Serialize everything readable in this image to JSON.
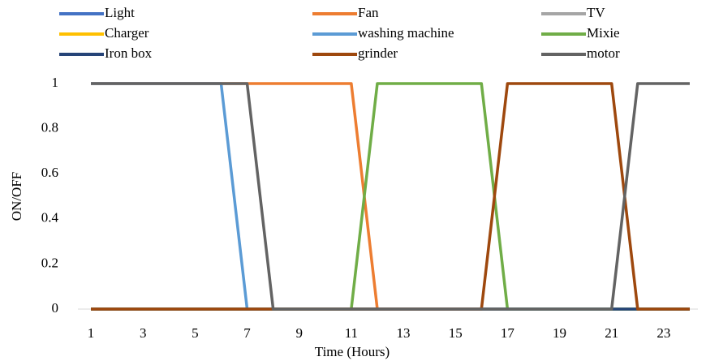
{
  "chart_data": {
    "type": "line",
    "x_label": "Time (Hours)",
    "y_label": "ON/OFF",
    "x": [
      1,
      2,
      3,
      4,
      5,
      6,
      7,
      8,
      9,
      10,
      11,
      12,
      13,
      14,
      15,
      16,
      17,
      18,
      19,
      20,
      21,
      22,
      23,
      24
    ],
    "xlim": [
      0.5,
      24.5
    ],
    "xticks": [
      1,
      3,
      5,
      7,
      9,
      11,
      13,
      15,
      17,
      19,
      21,
      23
    ],
    "ylim": [
      0,
      1
    ],
    "yticks": [
      0,
      0.2,
      0.4,
      0.6,
      0.8,
      1
    ],
    "grid": false,
    "legend": "top",
    "series": [
      {
        "name": "Light",
        "color": "#4472c4",
        "values": [
          0,
          0,
          0,
          0,
          0,
          0,
          0,
          0,
          0,
          0,
          0,
          0,
          0,
          0,
          0,
          0,
          0,
          0,
          0,
          0,
          0,
          0,
          0,
          0
        ]
      },
      {
        "name": "Fan",
        "color": "#ed7d31",
        "values": [
          1,
          1,
          1,
          1,
          1,
          1,
          1,
          1,
          1,
          1,
          1,
          0,
          0,
          0,
          0,
          0,
          0,
          0,
          0,
          0,
          0,
          0,
          0,
          0
        ]
      },
      {
        "name": "TV",
        "color": "#a5a5a5",
        "values": [
          0,
          0,
          0,
          0,
          0,
          0,
          0,
          0,
          0,
          0,
          0,
          0,
          0,
          0,
          0,
          0,
          0,
          0,
          0,
          0,
          0,
          0,
          0,
          0
        ]
      },
      {
        "name": "Charger",
        "color": "#ffc000",
        "values": [
          0,
          0,
          0,
          0,
          0,
          0,
          0,
          0,
          0,
          0,
          0,
          0,
          0,
          0,
          0,
          0,
          0,
          0,
          0,
          0,
          0,
          0,
          0,
          0
        ]
      },
      {
        "name": "washing machine",
        "color": "#5b9bd5",
        "values": [
          1,
          1,
          1,
          1,
          1,
          1,
          0,
          0,
          0,
          0,
          0,
          0,
          0,
          0,
          0,
          0,
          0,
          0,
          0,
          0,
          0,
          0,
          0,
          0
        ]
      },
      {
        "name": "Mixie",
        "color": "#70ad47",
        "values": [
          0,
          0,
          0,
          0,
          0,
          0,
          0,
          0,
          0,
          0,
          0,
          1,
          1,
          1,
          1,
          1,
          0,
          0,
          0,
          0,
          0,
          0,
          0,
          0
        ]
      },
      {
        "name": "Iron box",
        "color": "#264478",
        "values": [
          0,
          0,
          0,
          0,
          0,
          0,
          0,
          0,
          0,
          0,
          0,
          0,
          0,
          0,
          0,
          0,
          0,
          0,
          0,
          0,
          0,
          0,
          0,
          0
        ]
      },
      {
        "name": "grinder",
        "color": "#9e480e",
        "values": [
          0,
          0,
          0,
          0,
          0,
          0,
          0,
          0,
          0,
          0,
          0,
          0,
          0,
          0,
          0,
          0,
          1,
          1,
          1,
          1,
          1,
          0,
          0,
          0
        ]
      },
      {
        "name": "motor",
        "color": "#636363",
        "values": [
          1,
          1,
          1,
          1,
          1,
          1,
          1,
          0,
          0,
          0,
          0,
          0,
          0,
          0,
          0,
          0,
          0,
          0,
          0,
          0,
          0,
          1,
          1,
          1
        ]
      }
    ]
  }
}
